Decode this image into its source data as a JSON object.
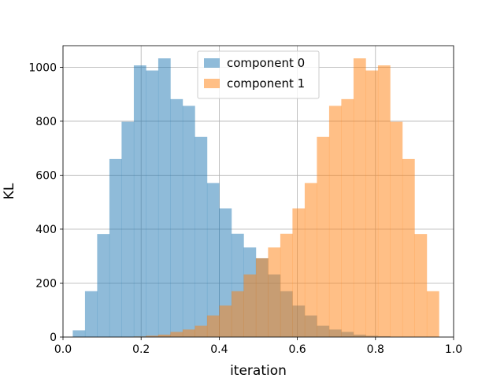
{
  "chart_data": {
    "type": "bar",
    "title": "",
    "xlabel": "iteration",
    "ylabel": "KL",
    "xlim": [
      -0.0,
      1.0
    ],
    "ylim": [
      0,
      1080
    ],
    "xticks": [
      0.0,
      0.2,
      0.4,
      0.6,
      0.8,
      1.0
    ],
    "xtick_labels": [
      "0.0",
      "0.2",
      "0.4",
      "0.6",
      "0.8",
      "1.0"
    ],
    "yticks": [
      0,
      200,
      400,
      600,
      800,
      1000
    ],
    "ytick_labels": [
      "0",
      "200",
      "400",
      "600",
      "800",
      "1000"
    ],
    "grid": true,
    "legend_position": "upper center",
    "bin_edges": [
      0.025,
      0.0563,
      0.0875,
      0.1188,
      0.15,
      0.1813,
      0.2125,
      0.2438,
      0.275,
      0.3063,
      0.3375,
      0.3688,
      0.4,
      0.4313,
      0.4625,
      0.4938,
      0.525,
      0.5563,
      0.5875,
      0.6188,
      0.65,
      0.6813,
      0.7125,
      0.7438,
      0.775,
      0.8063,
      0.8375,
      0.8688,
      0.9,
      0.9313,
      0.9625
    ],
    "series": [
      {
        "name": "component 0",
        "color": "#1f77b4",
        "opacity": 0.5,
        "values": [
          25,
          170,
          382,
          660,
          798,
          1007,
          988,
          1033,
          882,
          857,
          742,
          571,
          477,
          383,
          332,
          292,
          232,
          170,
          117,
          80,
          42,
          28,
          19,
          9,
          5,
          3,
          0,
          0,
          0,
          0
        ]
      },
      {
        "name": "component 1",
        "color": "#ff7f0e",
        "opacity": 0.5,
        "values": [
          0,
          0,
          0,
          0,
          0,
          2,
          5,
          9,
          19,
          28,
          42,
          80,
          117,
          170,
          232,
          292,
          332,
          383,
          477,
          571,
          742,
          857,
          882,
          1033,
          988,
          1007,
          798,
          660,
          382,
          170
        ]
      }
    ]
  }
}
